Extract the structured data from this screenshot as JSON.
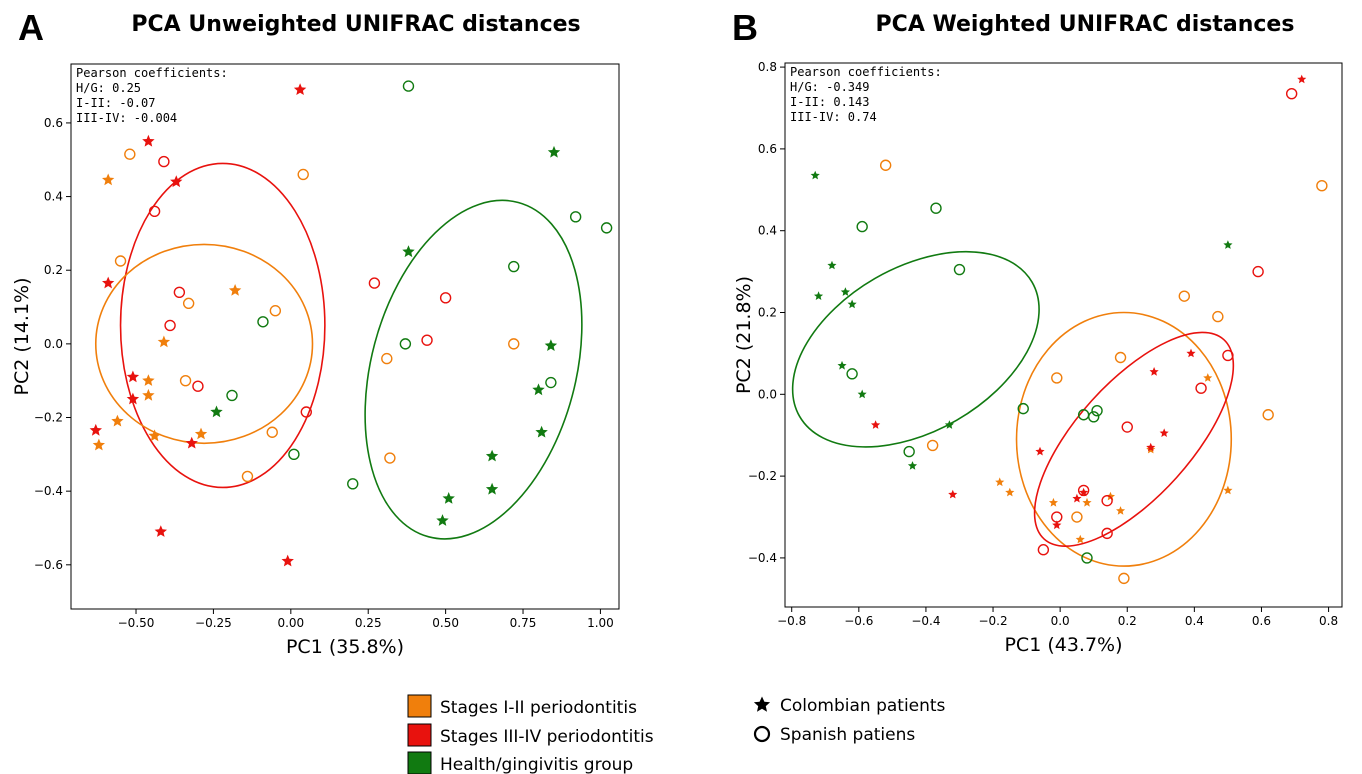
{
  "colors": {
    "stage_1_2": "#f07f0c",
    "stage_3_4": "#e8120e",
    "health": "#117a11",
    "axis": "#000000"
  },
  "panels": [
    {
      "letter": "A",
      "title": "PCA Unweighted UNIFRAC distances"
    },
    {
      "letter": "B",
      "title": "PCA Weighted UNIFRAC distances"
    }
  ],
  "legend": {
    "groups": [
      {
        "label": "Stages I-II periodontitis",
        "color": "#f07f0c"
      },
      {
        "label": "Stages III-IV periodontitis",
        "color": "#e8120e"
      },
      {
        "label": "Health/gingivitis group",
        "color": "#117a11"
      }
    ],
    "markers": [
      {
        "label": "Colombian patients",
        "icon": "star-icon"
      },
      {
        "label": "Spanish patiens",
        "icon": "circle-icon"
      }
    ]
  },
  "chart_data": [
    {
      "type": "scatter",
      "title": "PCA Unweighted UNIFRAC distances",
      "xlabel": "PC1 (35.8%)",
      "ylabel": "PC2 (14.1%)",
      "xlim": [
        -0.71,
        1.06
      ],
      "ylim": [
        -0.72,
        0.76
      ],
      "xticks": [
        -0.5,
        -0.25,
        0.0,
        0.25,
        0.5,
        0.75,
        1.0
      ],
      "xtick_labels": [
        "−0.50",
        "−0.25",
        "0.00",
        "0.25",
        "0.50",
        "0.75",
        "1.00"
      ],
      "yticks": [
        -0.6,
        -0.4,
        -0.2,
        0.0,
        0.2,
        0.4,
        0.6
      ],
      "ytick_labels": [
        "−0.6",
        "−0.4",
        "−0.2",
        "0.0",
        "0.2",
        "0.4",
        "0.6"
      ],
      "annotation": [
        "Pearson coefficients:",
        "H/G: 0.25",
        "I-II: -0.07",
        "III-IV: -0.004"
      ],
      "ellipses": [
        {
          "group": "stage_3_4",
          "cx": -0.22,
          "cy": 0.05,
          "rx": 0.33,
          "ry": 0.44,
          "angle": 0
        },
        {
          "group": "stage_1_2",
          "cx": -0.28,
          "cy": 0.0,
          "rx": 0.35,
          "ry": 0.27,
          "angle": 0
        },
        {
          "group": "health",
          "cx": 0.59,
          "cy": -0.07,
          "rx": 0.33,
          "ry": 0.47,
          "angle": 15
        }
      ],
      "series": [
        {
          "group": "stage_1_2",
          "marker": "star",
          "points": [
            [
              -0.59,
              0.445
            ],
            [
              -0.18,
              0.145
            ],
            [
              -0.41,
              0.005
            ],
            [
              -0.46,
              -0.1
            ],
            [
              -0.46,
              -0.14
            ],
            [
              -0.56,
              -0.21
            ],
            [
              -0.44,
              -0.25
            ],
            [
              -0.29,
              -0.245
            ],
            [
              -0.62,
              -0.275
            ]
          ]
        },
        {
          "group": "stage_1_2",
          "marker": "circle",
          "points": [
            [
              -0.52,
              0.515
            ],
            [
              0.04,
              0.46
            ],
            [
              -0.55,
              0.225
            ],
            [
              -0.33,
              0.11
            ],
            [
              -0.05,
              0.09
            ],
            [
              -0.34,
              -0.1
            ],
            [
              0.31,
              -0.04
            ],
            [
              0.72,
              0.0
            ],
            [
              0.32,
              -0.31
            ],
            [
              -0.06,
              -0.24
            ],
            [
              -0.14,
              -0.36
            ]
          ]
        },
        {
          "group": "stage_3_4",
          "marker": "star",
          "points": [
            [
              0.03,
              0.69
            ],
            [
              -0.46,
              0.55
            ],
            [
              -0.37,
              0.44
            ],
            [
              -0.59,
              0.165
            ],
            [
              -0.51,
              -0.09
            ],
            [
              -0.51,
              -0.15
            ],
            [
              -0.32,
              -0.27
            ],
            [
              -0.63,
              -0.235
            ],
            [
              -0.42,
              -0.51
            ],
            [
              -0.01,
              -0.59
            ]
          ]
        },
        {
          "group": "stage_3_4",
          "marker": "circle",
          "points": [
            [
              -0.41,
              0.495
            ],
            [
              -0.44,
              0.36
            ],
            [
              -0.36,
              0.14
            ],
            [
              -0.39,
              0.05
            ],
            [
              -0.3,
              -0.115
            ],
            [
              0.27,
              0.165
            ],
            [
              0.5,
              0.125
            ],
            [
              0.44,
              0.01
            ],
            [
              0.05,
              -0.185
            ]
          ]
        },
        {
          "group": "health",
          "marker": "star",
          "points": [
            [
              0.85,
              0.52
            ],
            [
              0.38,
              0.25
            ],
            [
              0.84,
              -0.005
            ],
            [
              0.8,
              -0.125
            ],
            [
              0.81,
              -0.24
            ],
            [
              0.65,
              -0.305
            ],
            [
              0.51,
              -0.42
            ],
            [
              0.65,
              -0.395
            ],
            [
              0.49,
              -0.48
            ],
            [
              -0.24,
              -0.185
            ]
          ]
        },
        {
          "group": "health",
          "marker": "circle",
          "points": [
            [
              0.38,
              0.7
            ],
            [
              0.92,
              0.345
            ],
            [
              1.02,
              0.315
            ],
            [
              0.72,
              0.21
            ],
            [
              0.37,
              0.0
            ],
            [
              0.84,
              -0.105
            ],
            [
              -0.09,
              0.06
            ],
            [
              -0.19,
              -0.14
            ],
            [
              0.01,
              -0.3
            ],
            [
              0.2,
              -0.38
            ]
          ]
        }
      ]
    },
    {
      "type": "scatter",
      "title": "PCA Weighted UNIFRAC distances",
      "xlabel": "PC1 (43.7%)",
      "ylabel": "PC2 (21.8%)",
      "xlim": [
        -0.82,
        0.84
      ],
      "ylim": [
        -0.52,
        0.81
      ],
      "xticks": [
        -0.8,
        -0.6,
        -0.4,
        -0.2,
        0.0,
        0.2,
        0.4,
        0.6,
        0.8
      ],
      "xtick_labels": [
        "−0.8",
        "−0.6",
        "−0.4",
        "−0.2",
        "0.0",
        "0.2",
        "0.4",
        "0.6",
        "0.8"
      ],
      "yticks": [
        -0.4,
        -0.2,
        0.0,
        0.2,
        0.4,
        0.6,
        0.8
      ],
      "ytick_labels": [
        "−0.4",
        "−0.2",
        "0.0",
        "0.2",
        "0.4",
        "0.6",
        "0.8"
      ],
      "annotation": [
        "Pearson coefficients:",
        "H/G: -0.349",
        "I-II: 0.143",
        "III-IV: 0.74"
      ],
      "ellipses": [
        {
          "group": "health",
          "cx": -0.43,
          "cy": 0.11,
          "rx": 0.4,
          "ry": 0.2,
          "angle": -30
        },
        {
          "group": "stage_1_2",
          "cx": 0.19,
          "cy": -0.11,
          "rx": 0.32,
          "ry": 0.31,
          "angle": 0
        },
        {
          "group": "stage_3_4",
          "cx": 0.22,
          "cy": -0.11,
          "rx": 0.4,
          "ry": 0.14,
          "angle": -48
        }
      ],
      "series": [
        {
          "group": "stage_1_2",
          "marker": "star",
          "points": [
            [
              -0.18,
              -0.215
            ],
            [
              -0.15,
              -0.24
            ],
            [
              -0.02,
              -0.265
            ],
            [
              0.08,
              -0.265
            ],
            [
              0.15,
              -0.25
            ],
            [
              0.18,
              -0.285
            ],
            [
              0.06,
              -0.355
            ],
            [
              0.27,
              -0.135
            ],
            [
              0.44,
              0.04
            ],
            [
              0.5,
              -0.235
            ]
          ]
        },
        {
          "group": "stage_1_2",
          "marker": "circle",
          "points": [
            [
              -0.52,
              0.56
            ],
            [
              0.78,
              0.51
            ],
            [
              0.37,
              0.24
            ],
            [
              0.47,
              0.19
            ],
            [
              0.18,
              0.09
            ],
            [
              -0.01,
              0.04
            ],
            [
              -0.38,
              -0.125
            ],
            [
              0.62,
              -0.05
            ],
            [
              0.05,
              -0.3
            ],
            [
              0.19,
              -0.45
            ]
          ]
        },
        {
          "group": "stage_3_4",
          "marker": "star",
          "points": [
            [
              0.72,
              0.77
            ],
            [
              0.39,
              0.1
            ],
            [
              0.28,
              0.055
            ],
            [
              0.31,
              -0.095
            ],
            [
              0.27,
              -0.13
            ],
            [
              -0.06,
              -0.14
            ],
            [
              -0.55,
              -0.075
            ],
            [
              -0.32,
              -0.245
            ],
            [
              0.05,
              -0.255
            ],
            [
              0.07,
              -0.24
            ],
            [
              -0.01,
              -0.32
            ]
          ]
        },
        {
          "group": "stage_3_4",
          "marker": "circle",
          "points": [
            [
              0.69,
              0.735
            ],
            [
              0.59,
              0.3
            ],
            [
              0.5,
              0.095
            ],
            [
              0.42,
              0.015
            ],
            [
              0.2,
              -0.08
            ],
            [
              0.07,
              -0.235
            ],
            [
              0.14,
              -0.26
            ],
            [
              -0.01,
              -0.3
            ],
            [
              0.14,
              -0.34
            ],
            [
              -0.05,
              -0.38
            ]
          ]
        },
        {
          "group": "health",
          "marker": "star",
          "points": [
            [
              -0.73,
              0.535
            ],
            [
              -0.68,
              0.315
            ],
            [
              -0.72,
              0.24
            ],
            [
              -0.64,
              0.25
            ],
            [
              -0.62,
              0.22
            ],
            [
              -0.65,
              0.07
            ],
            [
              -0.59,
              0.0
            ],
            [
              -0.33,
              -0.075
            ],
            [
              -0.44,
              -0.175
            ],
            [
              0.5,
              0.365
            ]
          ]
        },
        {
          "group": "health",
          "marker": "circle",
          "points": [
            [
              -0.59,
              0.41
            ],
            [
              -0.37,
              0.455
            ],
            [
              -0.3,
              0.305
            ],
            [
              -0.62,
              0.05
            ],
            [
              -0.11,
              -0.035
            ],
            [
              -0.45,
              -0.14
            ],
            [
              0.07,
              -0.05
            ],
            [
              0.1,
              -0.055
            ],
            [
              0.11,
              -0.04
            ],
            [
              0.08,
              -0.4
            ]
          ]
        }
      ]
    }
  ]
}
